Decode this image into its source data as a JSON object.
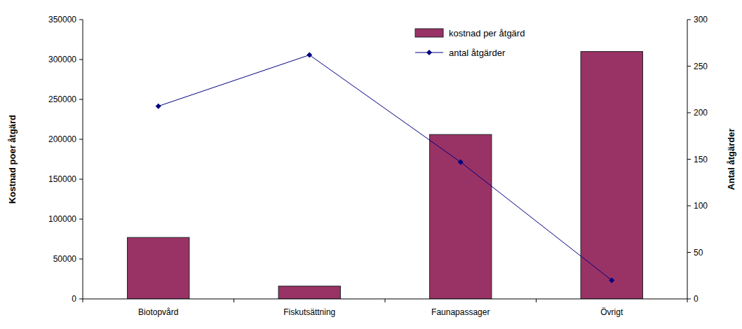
{
  "chart_data": {
    "type": "bar",
    "categories": [
      "Biotopvård",
      "Fiskutsättning",
      "Faunapassager",
      "Övrigt"
    ],
    "series": [
      {
        "name": "kostnad per åtgärd",
        "type": "bar",
        "color": "#993366",
        "values": [
          77000,
          16000,
          206000,
          310000
        ]
      },
      {
        "name": "antal åtgärder",
        "type": "line",
        "color": "#000080",
        "marker": "diamond",
        "axis": "y2",
        "values": [
          207,
          262,
          147,
          20
        ]
      }
    ],
    "y_label": "Kostnad poer åtgärd",
    "y2_label": "Antal åtgärder",
    "ylim": [
      0,
      350000
    ],
    "yticks": [
      0,
      50000,
      100000,
      150000,
      200000,
      250000,
      300000,
      350000
    ],
    "y2lim": [
      0,
      300
    ],
    "y2ticks": [
      0,
      50,
      100,
      150,
      200,
      250,
      300
    ],
    "legend": "upper right",
    "grid": false
  }
}
